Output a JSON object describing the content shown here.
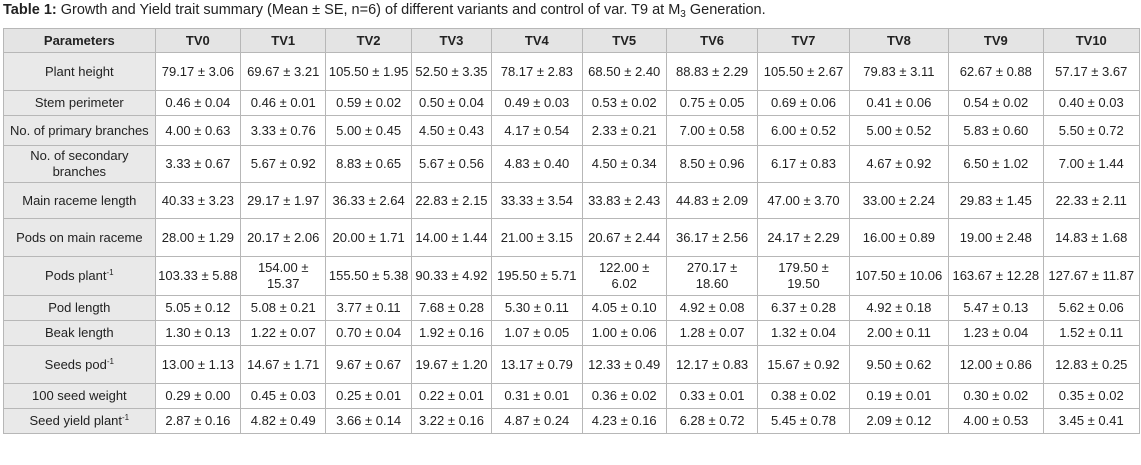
{
  "caption": {
    "label": "Table 1:",
    "text_before_sub": " Growth and Yield trait summary (Mean ± SE, n=6) of different variants and control of var. T9 at M",
    "sub": "3",
    "text_after_sub": " Generation."
  },
  "columns": [
    "Parameters",
    "TV0",
    "TV1",
    "TV2",
    "TV3",
    "TV4",
    "TV5",
    "TV6",
    "TV7",
    "TV8",
    "TV9",
    "TV10"
  ],
  "rows": [
    {
      "param": "Plant height",
      "sup": "",
      "values": [
        "79.17 ± 3.06",
        "69.67 ± 3.21",
        "105.50 ± 1.95",
        "52.50 ± 3.35",
        "78.17 ± 2.83",
        "68.50 ± 2.40",
        "88.83 ± 2.29",
        "105.50 ± 2.67",
        "79.83 ± 3.11",
        "62.67 ± 0.88",
        "57.17 ± 3.67"
      ]
    },
    {
      "param": "Stem perimeter",
      "sup": "",
      "values": [
        "0.46 ± 0.04",
        "0.46 ± 0.01",
        "0.59 ± 0.02",
        "0.50 ± 0.04",
        "0.49 ± 0.03",
        "0.53 ± 0.02",
        "0.75 ± 0.05",
        "0.69 ± 0.06",
        "0.41 ± 0.06",
        "0.54 ± 0.02",
        "0.40 ± 0.03"
      ]
    },
    {
      "param": "No. of primary branches",
      "sup": "",
      "values": [
        "4.00 ± 0.63",
        "3.33 ± 0.76",
        "5.00 ± 0.45",
        "4.50 ± 0.43",
        "4.17 ± 0.54",
        "2.33 ± 0.21",
        "7.00 ± 0.58",
        "6.00 ± 0.52",
        "5.00 ± 0.52",
        "5.83 ± 0.60",
        "5.50 ± 0.72"
      ]
    },
    {
      "param": "No. of secondary branches",
      "sup": "",
      "values": [
        "3.33 ± 0.67",
        "5.67 ± 0.92",
        "8.83 ± 0.65",
        "5.67 ± 0.56",
        "4.83 ± 0.40",
        "4.50 ± 0.34",
        "8.50 ± 0.96",
        "6.17 ± 0.83",
        "4.67 ± 0.92",
        "6.50 ± 1.02",
        "7.00 ± 1.44"
      ]
    },
    {
      "param": "Main raceme length",
      "sup": "",
      "values": [
        "40.33 ± 3.23",
        "29.17 ± 1.97",
        "36.33 ± 2.64",
        "22.83 ± 2.15",
        "33.33 ± 3.54",
        "33.83 ± 2.43",
        "44.83 ± 2.09",
        "47.00 ± 3.70",
        "33.00 ± 2.24",
        "29.83 ± 1.45",
        "22.33 ± 2.11"
      ]
    },
    {
      "param": "Pods on main raceme",
      "sup": "",
      "values": [
        "28.00 ± 1.29",
        "20.17 ± 2.06",
        "20.00 ± 1.71",
        "14.00 ± 1.44",
        "21.00 ± 3.15",
        "20.67 ± 2.44",
        "36.17 ± 2.56",
        "24.17 ± 2.29",
        "16.00 ± 0.89",
        "19.00 ± 2.48",
        "14.83 ± 1.68"
      ]
    },
    {
      "param": "Pods plant",
      "sup": "-1",
      "values": [
        "103.33 ± 5.88",
        "154.00 ± 15.37",
        "155.50 ± 5.38",
        "90.33 ± 4.92",
        "195.50 ± 5.71",
        "122.00 ± 6.02",
        "270.17 ± 18.60",
        "179.50 ± 19.50",
        "107.50 ± 10.06",
        "163.67 ± 12.28",
        "127.67 ± 11.87"
      ]
    },
    {
      "param": "Pod length",
      "sup": "",
      "values": [
        "5.05 ± 0.12",
        "5.08 ± 0.21",
        "3.77 ± 0.11",
        "7.68 ± 0.28",
        "5.30 ± 0.11",
        "4.05 ± 0.10",
        "4.92 ± 0.08",
        "6.37 ± 0.28",
        "4.92 ± 0.18",
        "5.47 ± 0.13",
        "5.62 ± 0.06"
      ]
    },
    {
      "param": "Beak length",
      "sup": "",
      "values": [
        "1.30 ± 0.13",
        "1.22 ± 0.07",
        "0.70 ± 0.04",
        "1.92 ± 0.16",
        "1.07 ± 0.05",
        "1.00 ± 0.06",
        "1.28 ± 0.07",
        "1.32 ± 0.04",
        "2.00 ± 0.11",
        "1.23 ± 0.04",
        "1.52 ± 0.11"
      ]
    },
    {
      "param": "Seeds pod",
      "sup": "-1",
      "values": [
        "13.00 ± 1.13",
        "14.67 ± 1.71",
        "9.67 ± 0.67",
        "19.67 ± 1.20",
        "13.17 ± 0.79",
        "12.33 ± 0.49",
        "12.17 ± 0.83",
        "15.67 ± 0.92",
        "9.50 ± 0.62",
        "12.00 ± 0.86",
        "12.83 ± 0.25"
      ]
    },
    {
      "param": "100 seed weight",
      "sup": "",
      "values": [
        "0.29 ± 0.00",
        "0.45 ± 0.03",
        "0.25 ± 0.01",
        "0.22 ± 0.01",
        "0.31 ± 0.01",
        "0.36 ± 0.02",
        "0.33 ± 0.01",
        "0.38 ± 0.02",
        "0.19 ± 0.01",
        "0.30 ± 0.02",
        "0.35 ± 0.02"
      ]
    },
    {
      "param": "Seed yield plant",
      "sup": "-1",
      "values": [
        "2.87 ± 0.16",
        "4.82 ± 0.49",
        "3.66 ± 0.14",
        "3.22 ± 0.16",
        "4.87 ± 0.24",
        "4.23 ± 0.16",
        "6.28 ± 0.72",
        "5.45 ± 0.78",
        "2.09 ± 0.12",
        "4.00 ± 0.53",
        "3.45 ± 0.41"
      ]
    }
  ]
}
